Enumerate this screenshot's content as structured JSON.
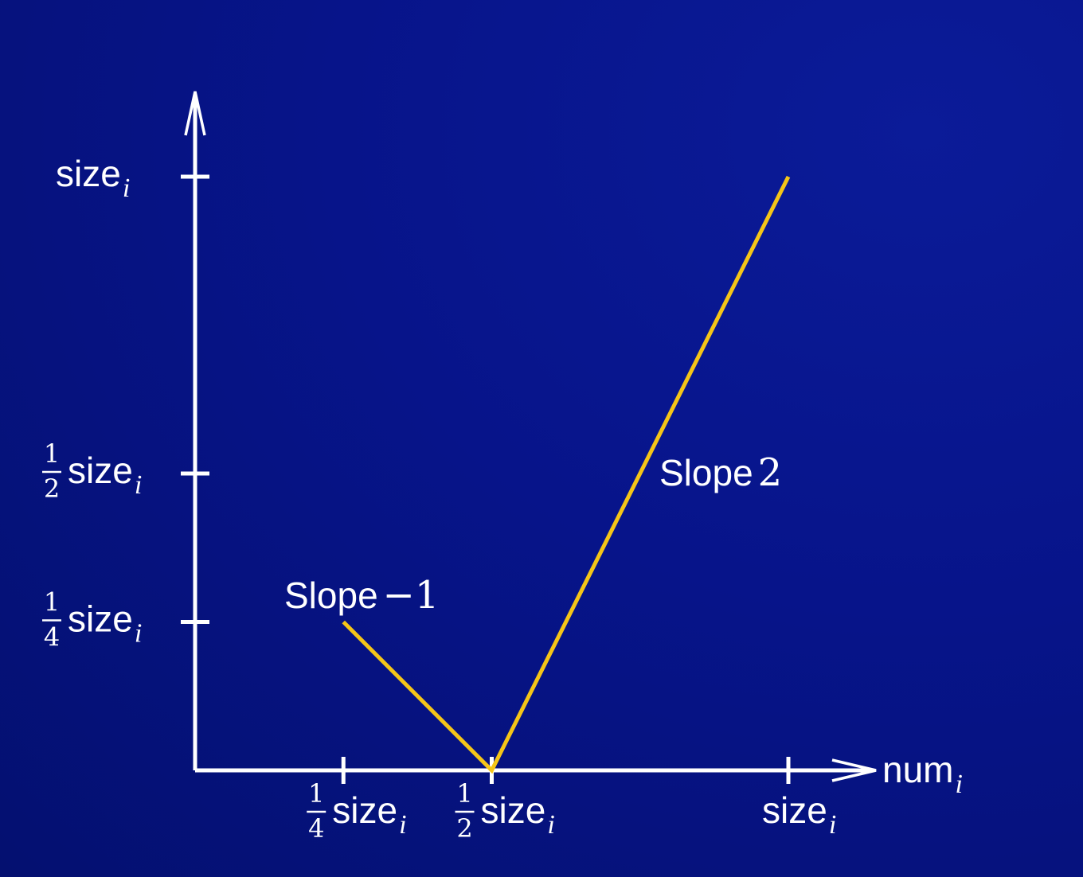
{
  "chart_data": {
    "type": "line",
    "xlabel": "num",
    "xlabel_sub": "i",
    "ylabel": "",
    "x_ticks": [
      {
        "value": 0.25,
        "frac_num": "1",
        "frac_den": "4",
        "text": "size",
        "sub": "i"
      },
      {
        "value": 0.5,
        "frac_num": "1",
        "frac_den": "2",
        "text": "size",
        "sub": "i"
      },
      {
        "value": 1.0,
        "frac_num": "",
        "frac_den": "",
        "text": "size",
        "sub": "i"
      }
    ],
    "y_ticks": [
      {
        "value": 0.25,
        "frac_num": "1",
        "frac_den": "4",
        "text": "size",
        "sub": "i"
      },
      {
        "value": 0.5,
        "frac_num": "1",
        "frac_den": "2",
        "text": "size",
        "sub": "i"
      },
      {
        "value": 1.0,
        "frac_num": "",
        "frac_den": "",
        "text": "size",
        "sub": "i"
      }
    ],
    "xlim": [
      0,
      1.0
    ],
    "ylim": [
      0,
      1.0
    ],
    "series": [
      {
        "x": [
          0.25,
          0.5,
          1.0
        ],
        "y": [
          0.25,
          0.0,
          1.0
        ],
        "color": "#f5c518"
      }
    ],
    "annotations": [
      {
        "text": "Slope ",
        "math": "−1",
        "anchor_x": 0.25,
        "anchor_y": 0.25
      },
      {
        "text": "Slope ",
        "math": "2",
        "anchor_x": 0.75,
        "anchor_y": 0.5
      }
    ],
    "axis_color": "#ffffff",
    "grid": false
  }
}
